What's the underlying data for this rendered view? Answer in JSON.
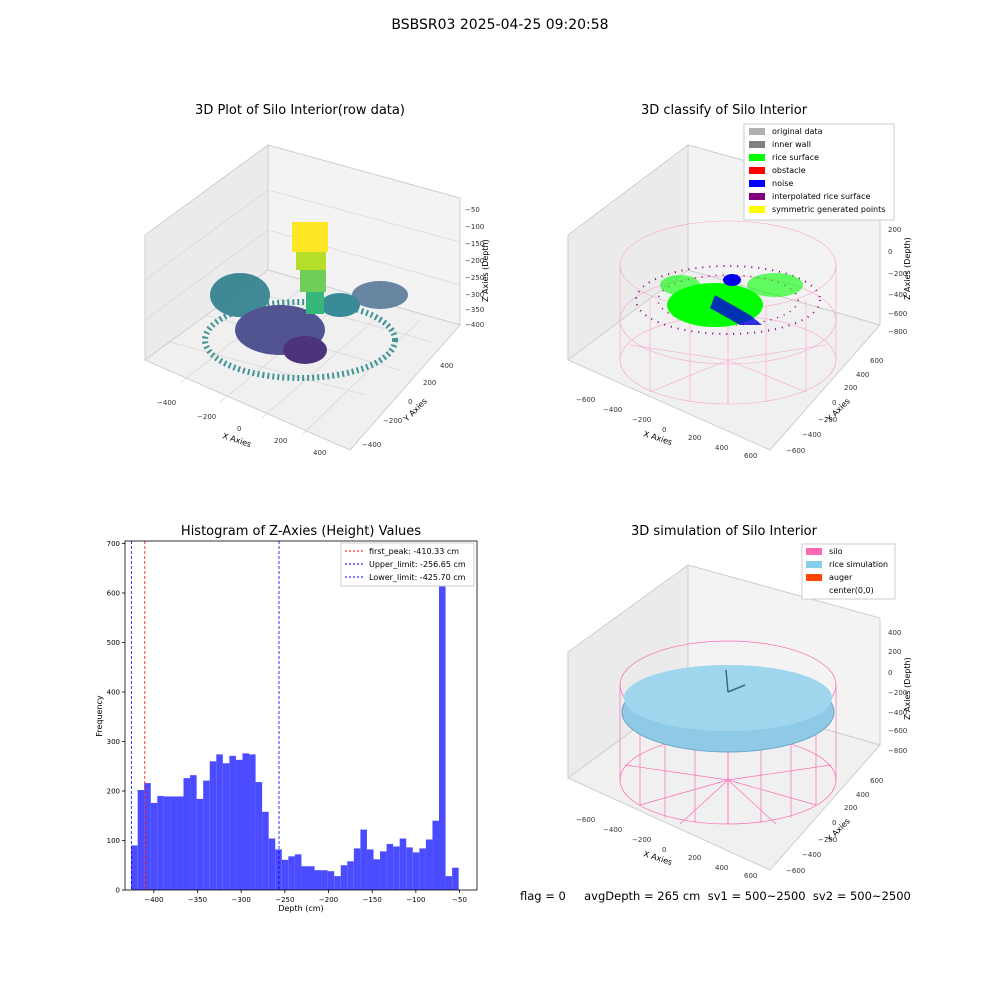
{
  "suptitle": "BSBSR03 2025-04-25 09:20:58",
  "footer": "flag = 0     avgDepth = 265 cm  sv1 = 500~2500  sv2 = 500~2500",
  "chart_data": [
    {
      "type": "scatter",
      "title": "3D Plot of Silo Interior(row data)",
      "xlabel": "X Axies",
      "ylabel": "Y Axies",
      "zlabel": "Z Axies (Depth)",
      "xticks": [
        "−400",
        "−200",
        "0",
        "200",
        "400"
      ],
      "yticks": [
        "−400",
        "−200",
        "0",
        "200",
        "400"
      ],
      "zticks": [
        "−50",
        "−100",
        "−150",
        "−200",
        "−250",
        "−300",
        "−350",
        "−400"
      ],
      "colormap": "viridis"
    },
    {
      "type": "scatter",
      "title": "3D classify of Silo Interior",
      "xlabel": "X Axies",
      "ylabel": "Y Axies",
      "zlabel": "Z Axies (Depth)",
      "xticks": [
        "−600",
        "−400",
        "−200",
        "0",
        "200",
        "400",
        "600"
      ],
      "yticks": [
        "−600",
        "−400",
        "−200",
        "0",
        "200",
        "400",
        "600"
      ],
      "zticks": [
        "200",
        "0",
        "−200",
        "−400",
        "−600",
        "−800"
      ],
      "legend": [
        {
          "label": "original data",
          "color": "#b0b0b0"
        },
        {
          "label": "inner wall",
          "color": "#808080"
        },
        {
          "label": "rice surface",
          "color": "#00ff00"
        },
        {
          "label": "obstacle",
          "color": "#ff0000"
        },
        {
          "label": "noise",
          "color": "#0000ff"
        },
        {
          "label": "interpolated rice surface",
          "color": "#800080"
        },
        {
          "label": "symmetric generated points",
          "color": "#ffff00"
        }
      ],
      "legend_position": "upper right"
    },
    {
      "type": "bar",
      "title": "Histogram of Z-Axies (Height) Values",
      "xlabel": "Depth (cm)",
      "ylabel": "Frequency",
      "xlim": [
        -433,
        -30
      ],
      "ylim": [
        0,
        705
      ],
      "xticks": [
        -400,
        -350,
        -300,
        -250,
        -200,
        -150,
        -100,
        -50
      ],
      "yticks": [
        0,
        100,
        200,
        300,
        400,
        500,
        600,
        700
      ],
      "bin_start": -426,
      "bin_width": 7.5,
      "values": [
        90,
        202,
        216,
        176,
        190,
        189,
        189,
        189,
        226,
        232,
        184,
        221,
        260,
        274,
        256,
        271,
        263,
        276,
        274,
        218,
        158,
        104,
        82,
        61,
        68,
        72,
        48,
        48,
        40,
        40,
        38,
        28,
        50,
        58,
        84,
        122,
        82,
        62,
        78,
        93,
        88,
        104,
        86,
        76,
        84,
        102,
        140,
        660,
        28,
        45
      ],
      "bar_color": "#4b4bff",
      "vlines": [
        {
          "label": "first_peak: -410.33 cm",
          "x": -410.33,
          "color": "#ff0000"
        },
        {
          "label": "Upper_limit: -256.65 cm",
          "x": -256.65,
          "color": "#0000ff"
        },
        {
          "label": "Lower_limit: -425.70 cm",
          "x": -425.7,
          "color": "#0000ff"
        }
      ],
      "legend_position": "upper right"
    },
    {
      "type": "scatter",
      "title": "3D simulation of Silo Interior",
      "xlabel": "X Axies",
      "ylabel": "Y Axies",
      "zlabel": "Z Axies (Depth)",
      "xticks": [
        "−600",
        "−400",
        "−200",
        "0",
        "200",
        "400",
        "600"
      ],
      "yticks": [
        "−600",
        "−400",
        "−200",
        "0",
        "200",
        "400",
        "600"
      ],
      "zticks": [
        "400",
        "200",
        "0",
        "−200",
        "−400",
        "−600",
        "−800"
      ],
      "legend": [
        {
          "label": "silo",
          "color": "#ff69b4"
        },
        {
          "label": "rice simulation",
          "color": "#87ceeb"
        },
        {
          "label": "auger",
          "color": "#ff4500"
        },
        {
          "label": "center(0,0)",
          "color": "#ffffff"
        }
      ],
      "legend_position": "upper right"
    }
  ]
}
